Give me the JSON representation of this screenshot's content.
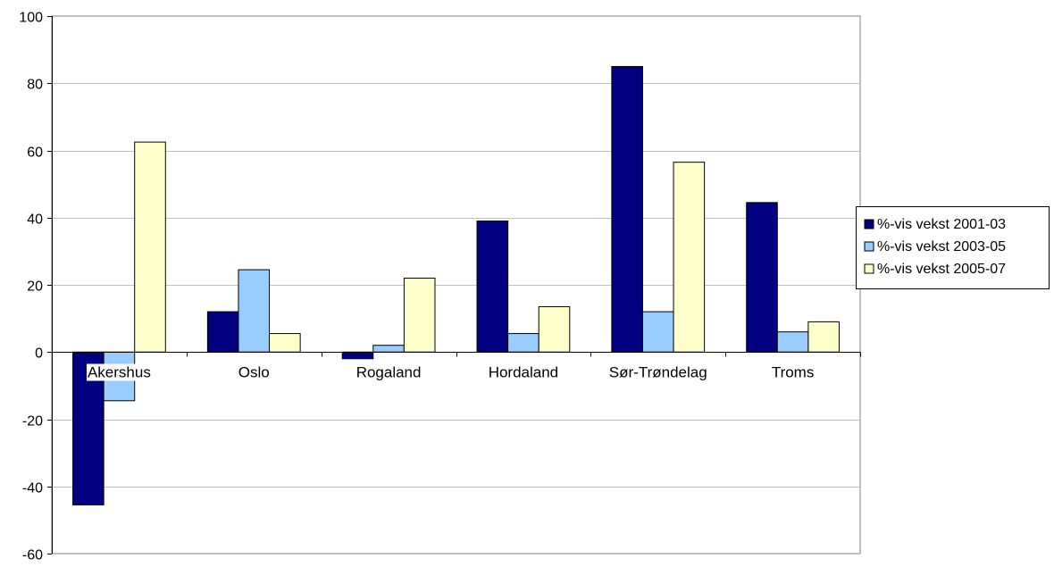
{
  "chart_data": {
    "type": "bar",
    "title": "",
    "xlabel": "",
    "ylabel": "",
    "ylim": [
      -60,
      100
    ],
    "yticks": [
      100,
      80,
      60,
      40,
      20,
      0,
      -20,
      -40,
      -60
    ],
    "grid": true,
    "legend_position": "right",
    "categories": [
      "Akershus",
      "Oslo",
      "Rogaland",
      "Hordaland",
      "Sør-Trøndelag",
      "Troms"
    ],
    "series": [
      {
        "name": "%-vis vekst 2001-03",
        "color": "#000080",
        "values": [
          -45.5,
          12,
          -2,
          39,
          85,
          44.5
        ]
      },
      {
        "name": "%-vis vekst 2003-05",
        "color": "#99ccff",
        "values": [
          -14.5,
          24.5,
          2,
          5.5,
          12,
          6
        ]
      },
      {
        "name": "%-vis vekst 2005-07",
        "color": "#ffffcc",
        "values": [
          62.5,
          5.5,
          22,
          13.5,
          56.5,
          9
        ]
      }
    ]
  }
}
